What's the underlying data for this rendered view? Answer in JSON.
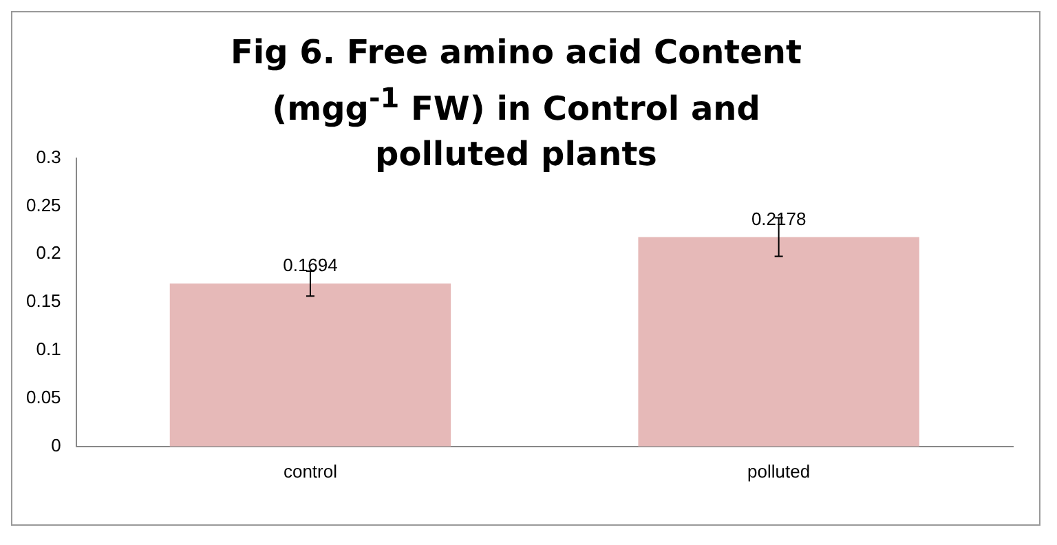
{
  "chart_data": {
    "type": "bar",
    "title": "Fig 6. Free amino acid Content (mgg$^{-1}$ FW) in Control and polluted plants",
    "categories": [
      "control",
      "polluted"
    ],
    "values": [
      0.1694,
      0.2178
    ],
    "errors": [
      0.013,
      0.02
    ],
    "color": "#e6b9b8",
    "ylim": [
      0,
      0.3
    ],
    "yticks": [
      0,
      0.05,
      0.1,
      0.15,
      0.2,
      0.25,
      0.3
    ],
    "grid": false,
    "legend": false,
    "data_labels": true
  }
}
